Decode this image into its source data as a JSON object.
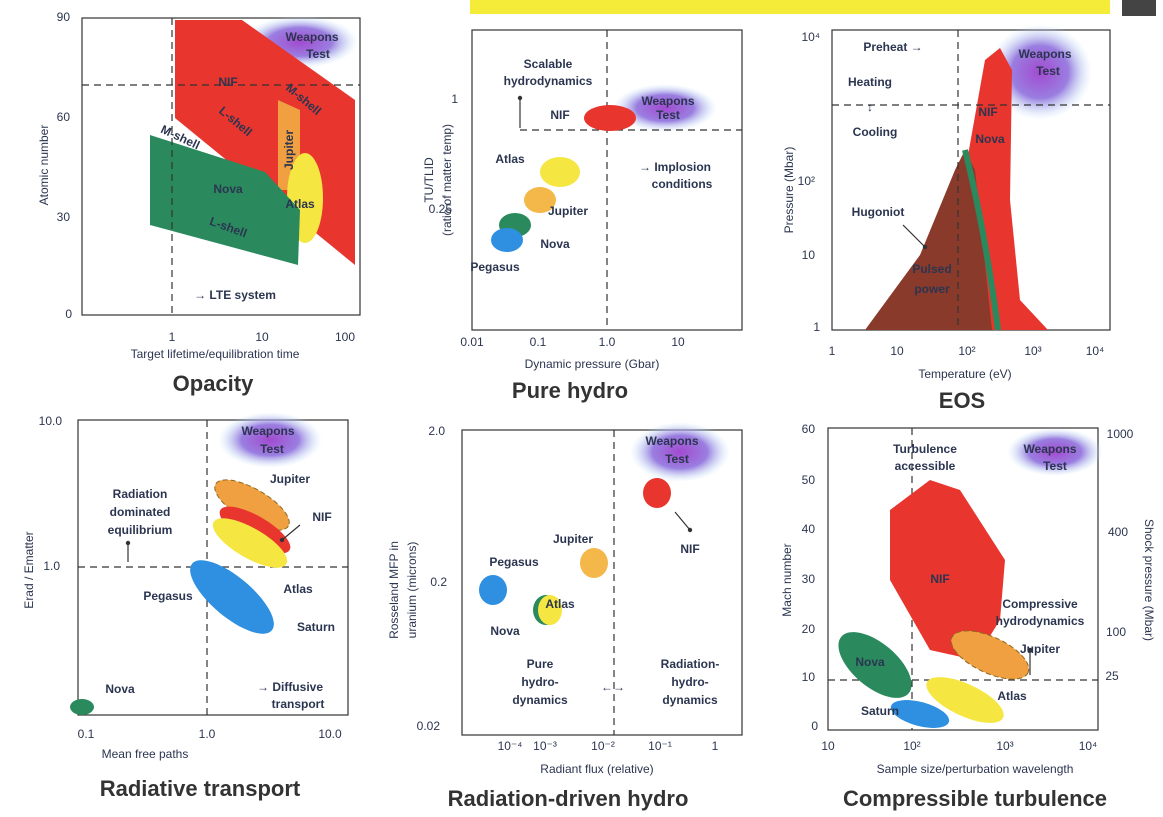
{
  "panels": [
    {
      "title": "Opacity",
      "x_label": "Target lifetime/equilibration time",
      "y_label": [
        "Atomic number"
      ],
      "xticks": [
        "1",
        "10",
        "100"
      ],
      "yticks": [
        "90",
        "60",
        "30",
        "0"
      ],
      "labels": [
        "Weapons",
        "Test",
        "NIF",
        "L-shell",
        "M-shell",
        "Jupiter",
        "Atlas",
        "M-shell",
        "Nova",
        "L-shell",
        "→ LTE system"
      ]
    },
    {
      "title": "Pure hydro",
      "x_label": "Dynamic pressure (Gbar)",
      "y_label": [
        "TU/TLID",
        "(ratio of matter temp)"
      ],
      "xticks": [
        "0.01",
        "0.1",
        "1.0",
        "10"
      ],
      "yticks": [
        "1",
        "0.25"
      ],
      "labels": [
        "Scalable",
        "hydrodynamics",
        "NIF",
        "Weapons",
        "Test",
        "Atlas",
        "→ Implosion",
        "conditions",
        "Jupiter",
        "Nova",
        "Pegasus"
      ]
    },
    {
      "title": "EOS",
      "x_label": "Temperature (eV)",
      "y_label": [
        "Pressure (Mbar)"
      ],
      "xticks": [
        "1",
        "10",
        "10²",
        "10³",
        "10⁴"
      ],
      "yticks": [
        "10⁴",
        "10²",
        "10",
        "1"
      ],
      "labels": [
        "Preheat →",
        "Heating",
        "↕",
        "Cooling",
        "NIF",
        "Nova",
        "Weapons",
        "Test",
        "Hugoniot",
        "Pulsed",
        "power"
      ]
    },
    {
      "title": "Radiative transport",
      "x_label": "Mean free paths",
      "y_label": [
        "Erad / Ematter"
      ],
      "xticks": [
        "0.1",
        "1.0",
        "10.0"
      ],
      "yticks": [
        "10.0",
        "1.0"
      ],
      "labels": [
        "Weapons",
        "Test",
        "Jupiter",
        "Radiation",
        "dominated",
        "equilibrium",
        "NIF",
        "Atlas",
        "Pegasus",
        "Saturn",
        "Nova",
        "→ Diffusive",
        "transport"
      ]
    },
    {
      "title": "Radiation-driven hydro",
      "x_label": "Radiant flux (relative)",
      "y_label": [
        "Rosseland MFP in",
        "uranium (microns)"
      ],
      "xticks": [
        "10⁻⁴",
        "10⁻³",
        "10⁻²",
        "10⁻¹",
        "1"
      ],
      "yticks": [
        "2.0",
        "0.2",
        "0.02"
      ],
      "labels": [
        "Weapons",
        "Test",
        "NIF",
        "Jupiter",
        "Pegasus",
        "Atlas",
        "Nova",
        "Pure",
        "hydro-",
        "dynamics",
        "Radiation-",
        "hydro-",
        "dynamics",
        "←→"
      ]
    },
    {
      "title": "Compressible turbulence",
      "x_label": "Sample size/perturbation wavelength",
      "y_label": [
        "Mach number"
      ],
      "y2_label": "Shock pressure (Mbar)",
      "xticks": [
        "10",
        "10²",
        "10³",
        "10⁴"
      ],
      "yticks": [
        "60",
        "50",
        "40",
        "30",
        "20",
        "10",
        "0"
      ],
      "y2ticks": [
        "1000",
        "400",
        "100",
        "25"
      ],
      "labels": [
        "Turbulence",
        "accessible",
        "Weapons",
        "Test",
        "NIF",
        "Compressive",
        "hydrodynamics",
        "Jupiter",
        "Atlas",
        "Saturn",
        "Nova"
      ]
    }
  ]
}
